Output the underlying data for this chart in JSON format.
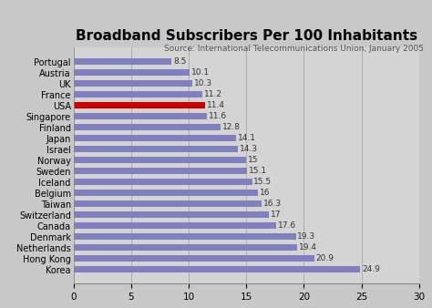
{
  "title": "Broadband Subscribers Per 100 Inhabitants",
  "source": "Source: International Telecommunications Union, January 2005",
  "countries": [
    "Portugal",
    "Austria",
    "UK",
    "France",
    "USA",
    "Singapore",
    "Finland",
    "Japan",
    "Israel",
    "Norway",
    "Sweden",
    "Iceland",
    "Belgium",
    "Taiwan",
    "Switzerland",
    "Canada",
    "Denmark",
    "Netherlands",
    "Hong Kong",
    "Korea"
  ],
  "values": [
    8.5,
    10.1,
    10.3,
    11.2,
    11.4,
    11.6,
    12.8,
    14.1,
    14.3,
    15.0,
    15.1,
    15.5,
    16.0,
    16.3,
    17.0,
    17.6,
    19.3,
    19.4,
    20.9,
    24.9
  ],
  "bar_colors": [
    "#8080c0",
    "#8080c0",
    "#8080c0",
    "#8080c0",
    "#cc0000",
    "#8080c0",
    "#8080c0",
    "#8080c0",
    "#8080c0",
    "#8080c0",
    "#8080c0",
    "#8080c0",
    "#8080c0",
    "#8080c0",
    "#8080c0",
    "#8080c0",
    "#8080c0",
    "#8080c0",
    "#8080c0",
    "#8080c0"
  ],
  "background_color": "#c8c8c8",
  "plot_area_color": "#d4d4d4",
  "xlim": [
    0,
    30
  ],
  "xticks": [
    0,
    5,
    10,
    15,
    20,
    25,
    30
  ],
  "title_fontsize": 11,
  "source_fontsize": 6.5,
  "label_fontsize": 6.5,
  "ytick_fontsize": 7,
  "xtick_fontsize": 7.5
}
